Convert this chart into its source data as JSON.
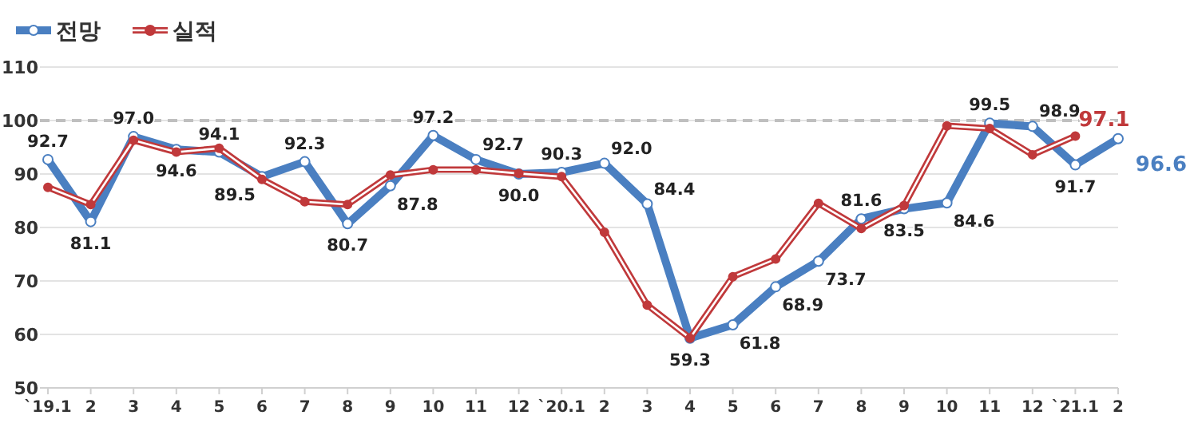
{
  "chart_data": {
    "type": "line",
    "categories": [
      "`19.1",
      "2",
      "3",
      "4",
      "5",
      "6",
      "7",
      "8",
      "9",
      "10",
      "11",
      "12",
      "`20.1",
      "2",
      "3",
      "4",
      "5",
      "6",
      "7",
      "8",
      "9",
      "10",
      "11",
      "12",
      "`21.1",
      "2"
    ],
    "series": [
      {
        "name": "전망",
        "color": "#4a7fc1",
        "values": [
          92.7,
          81.1,
          97.0,
          94.6,
          94.1,
          89.5,
          92.3,
          80.7,
          87.8,
          97.2,
          92.7,
          90.0,
          90.3,
          92.0,
          84.4,
          59.3,
          61.8,
          68.9,
          73.7,
          81.6,
          83.5,
          84.6,
          99.5,
          98.9,
          91.7,
          96.6
        ],
        "value_labels": [
          "92.7",
          "81.1",
          "97.0",
          "94.6",
          "94.1",
          "89.5",
          "92.3",
          "80.7",
          "87.8",
          "97.2",
          "92.7",
          "90.0",
          "90.3",
          "92.0",
          "84.4",
          "59.3",
          "61.8",
          "68.9",
          "73.7",
          "81.6",
          "83.5",
          "84.6",
          "99.5",
          "98.9",
          "91.7",
          "96.6"
        ]
      },
      {
        "name": "실적",
        "color": "#c0393b",
        "values": [
          87.5,
          84.3,
          96.3,
          94.1,
          94.8,
          89.0,
          84.8,
          84.3,
          89.8,
          90.8,
          90.8,
          90.1,
          89.5,
          79.1,
          65.5,
          59.3,
          70.8,
          74.1,
          84.5,
          79.8,
          84.1,
          99.0,
          98.5,
          93.6,
          97.1,
          null
        ],
        "value_labels": [
          null,
          null,
          null,
          null,
          null,
          null,
          null,
          null,
          null,
          null,
          null,
          null,
          null,
          null,
          null,
          null,
          null,
          null,
          null,
          null,
          null,
          null,
          null,
          null,
          "97.1",
          null
        ]
      }
    ],
    "ylim": [
      50,
      110
    ],
    "yticks": [
      50,
      60,
      70,
      80,
      90,
      100,
      110
    ],
    "ref_lines": [
      {
        "axis": "y",
        "value": 100,
        "color": "#bfbfbf",
        "line_style": "dashed"
      }
    ],
    "grid": "y",
    "legend": "top left",
    "marker": "circle",
    "line_style": "solid"
  }
}
